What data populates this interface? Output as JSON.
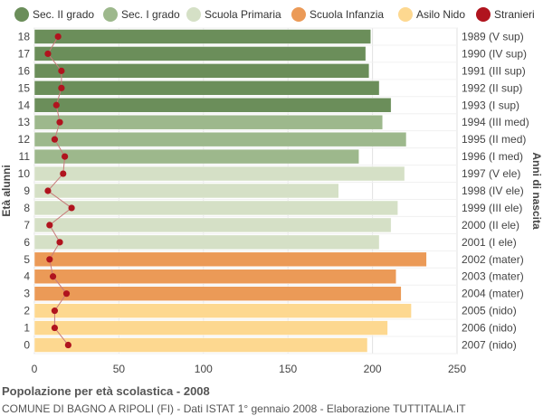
{
  "legend": [
    {
      "label": "Sec. II grado",
      "color": "#6b8e5a"
    },
    {
      "label": "Sec. I grado",
      "color": "#9db88c"
    },
    {
      "label": "Scuola Primaria",
      "color": "#d5e0c6"
    },
    {
      "label": "Scuola Infanzia",
      "color": "#eb9a57"
    },
    {
      "label": "Asilo Nido",
      "color": "#fdd890"
    },
    {
      "label": "Stranieri",
      "color": "#b0141e"
    }
  ],
  "footer": {
    "title": "Popolazione per età scolastica - 2008",
    "subtitle": "COMUNE DI BAGNO A RIPOLI (FI) - Dati ISTAT 1° gennaio 2008 - Elaborazione TUTTITALIA.IT"
  },
  "chart_data": {
    "type": "bar",
    "orientation": "horizontal",
    "ylabel": "Età alunni",
    "ylabel_right": "Anni di nascita",
    "xlim": [
      0,
      250
    ],
    "xticks": [
      0,
      50,
      100,
      150,
      200,
      250
    ],
    "grid": true,
    "ages": [
      18,
      17,
      16,
      15,
      14,
      13,
      12,
      11,
      10,
      9,
      8,
      7,
      6,
      5,
      4,
      3,
      2,
      1,
      0
    ],
    "birth_years": [
      "1989 (V sup)",
      "1990 (IV sup)",
      "1991 (III sup)",
      "1992 (II sup)",
      "1993 (I sup)",
      "1994 (III med)",
      "1995 (II med)",
      "1996 (I med)",
      "1997 (V ele)",
      "1998 (IV ele)",
      "1999 (III ele)",
      "2000 (II ele)",
      "2001 (I ele)",
      "2002 (mater)",
      "2003 (mater)",
      "2004 (mater)",
      "2005 (nido)",
      "2006 (nido)",
      "2007 (nido)"
    ],
    "values": [
      199,
      196,
      198,
      204,
      211,
      206,
      220,
      192,
      219,
      180,
      215,
      211,
      204,
      232,
      214,
      217,
      223,
      209,
      197
    ],
    "groups": [
      "Sec. II grado",
      "Sec. II grado",
      "Sec. II grado",
      "Sec. II grado",
      "Sec. II grado",
      "Sec. I grado",
      "Sec. I grado",
      "Sec. I grado",
      "Scuola Primaria",
      "Scuola Primaria",
      "Scuola Primaria",
      "Scuola Primaria",
      "Scuola Primaria",
      "Scuola Infanzia",
      "Scuola Infanzia",
      "Scuola Infanzia",
      "Asilo Nido",
      "Asilo Nido",
      "Asilo Nido"
    ],
    "stranieri": [
      14,
      8,
      16,
      16,
      13,
      15,
      12,
      18,
      17,
      8,
      22,
      9,
      15,
      9,
      11,
      19,
      12,
      12,
      20
    ]
  }
}
